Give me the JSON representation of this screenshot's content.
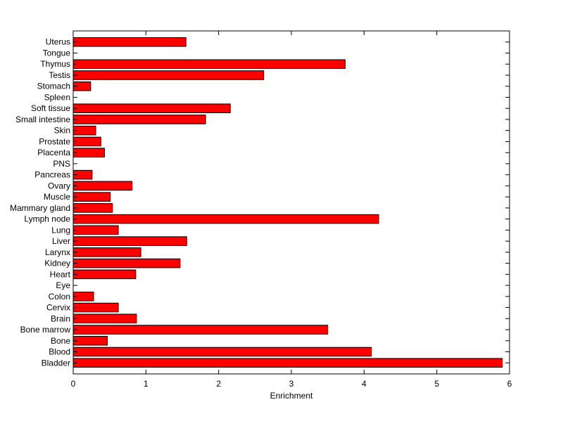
{
  "chart_data": {
    "type": "bar",
    "orientation": "horizontal",
    "title": "",
    "xlabel": "Enrichment",
    "ylabel": "",
    "xlim": [
      0,
      6
    ],
    "xticks": [
      0,
      1,
      2,
      3,
      4,
      5,
      6
    ],
    "grid": false,
    "legend": "none",
    "bar_color": "#ff0000",
    "bar_edge_color": "#000000",
    "categories": [
      "Bladder",
      "Blood",
      "Bone",
      "Bone marrow",
      "Brain",
      "Cervix",
      "Colon",
      "Eye",
      "Heart",
      "Kidney",
      "Larynx",
      "Liver",
      "Lung",
      "Lymph node",
      "Mammary gland",
      "Muscle",
      "Ovary",
      "Pancreas",
      "PNS",
      "Placenta",
      "Prostate",
      "Skin",
      "Small intestine",
      "Soft tissue",
      "Spleen",
      "Stomach",
      "Testis",
      "Thymus",
      "Tongue",
      "Uterus"
    ],
    "values": [
      5.9,
      4.1,
      0.47,
      3.5,
      0.87,
      0.62,
      0.28,
      0,
      0.86,
      1.47,
      0.93,
      1.56,
      0.62,
      4.2,
      0.54,
      0.51,
      0.81,
      0.26,
      0,
      0.43,
      0.38,
      0.31,
      1.82,
      2.16,
      0,
      0.24,
      2.62,
      3.74,
      0,
      1.55
    ]
  }
}
